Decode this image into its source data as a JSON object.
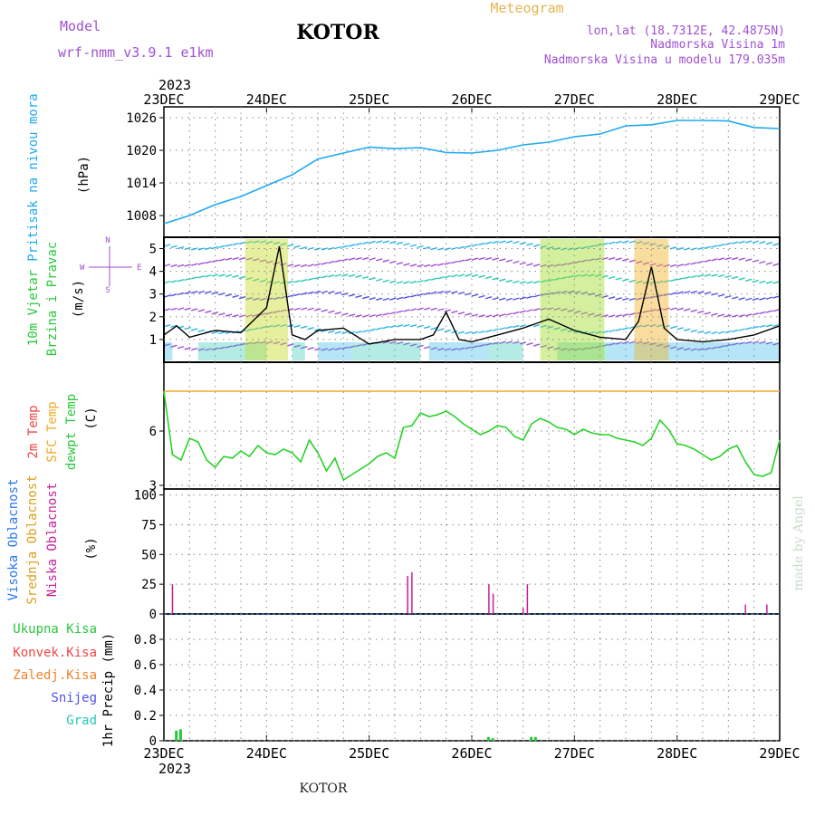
{
  "header": {
    "model_label": "Model",
    "model_name": "wrf-nmm_v3.9.1  e1km",
    "title": "KOTOR",
    "meteogram": "Meteogram",
    "lonlat": "lon,lat (18.7312E, 42.4875N)",
    "elev": "Nadmorska Visina 1m",
    "elev_model": "Nadmorska Visina u modelu 179.035m"
  },
  "footer": {
    "station": "KOTOR",
    "credit": "made by Angel"
  },
  "colors": {
    "pressure": "#1eaaf0",
    "temp2m": "#f04646",
    "sfc": "#f0aa28",
    "dewpt": "#28d228",
    "high_cloud": "#2878f0",
    "mid_cloud": "#dca01e",
    "low_cloud": "#c81e96",
    "precip": "#28c83c",
    "wind_label": "#28c83c",
    "compass": "#a050d2",
    "header_purple": "#a050d2",
    "header_gold": "#e6b450",
    "grid": "#888888"
  },
  "time_axis": {
    "year": "2023",
    "labels": [
      "23DEC",
      "24DEC",
      "25DEC",
      "26DEC",
      "27DEC",
      "28DEC",
      "29DEC"
    ]
  },
  "panels": {
    "pressure": {
      "label": "Pritisak na nivou mora",
      "unit": "(hPa)"
    },
    "wind": {
      "label1": "10m Vjetar",
      "label2": "Brzina i Pravac",
      "unit": "(m/s)",
      "compass": [
        "N",
        "W",
        "E",
        "S"
      ]
    },
    "temp": {
      "label1": "2m Temp",
      "label2": "SFC Temp",
      "label3": "dewpt Temp",
      "unit": "(C)"
    },
    "cloud": {
      "label1": "Visoka Oblacnost",
      "label2": "Srednja Oblacnost",
      "label3": "Niska Oblacnost",
      "unit": "(%)"
    },
    "precip": {
      "labels": [
        "Ukupna Kisa",
        "Konvek.Kisa",
        "Zaledj.Kisa",
        "Snijeg",
        "Grad"
      ],
      "unit": "1hr Precip (mm)"
    }
  },
  "chart_data": [
    {
      "type": "line",
      "title": "Pritisak na nivou mora",
      "ylabel": "(hPa)",
      "ylim": [
        1004,
        1028
      ],
      "yticks": [
        1008,
        1014,
        1020,
        1026
      ],
      "grid": true,
      "x": [
        0,
        6,
        12,
        18,
        24,
        30,
        36,
        42,
        48,
        54,
        60,
        66,
        72,
        78,
        84,
        90,
        96,
        102,
        108,
        114,
        120,
        126,
        132,
        138,
        144
      ],
      "series": [
        {
          "name": "",
          "values": [
            1006.5,
            1008,
            1010,
            1011.5,
            1013.5,
            1015.5,
            1018.4,
            1019.5,
            1020.6,
            1020.3,
            1020.5,
            1019.6,
            1019.5,
            1020,
            1021,
            1021.5,
            1022.5,
            1023,
            1024.5,
            1024.7,
            1025.5,
            1025.5,
            1025.4,
            1024.2,
            1024
          ]
        }
      ]
    },
    {
      "type": "line",
      "title": "10m Vjetar Brzina i Pravac",
      "ylabel": "(m/s)",
      "ylim": [
        0,
        5.5
      ],
      "yticks": [
        1,
        2,
        3,
        4,
        5
      ],
      "grid": true,
      "x": [
        0,
        3,
        6,
        12,
        18,
        24,
        27,
        30,
        33,
        36,
        42,
        48,
        54,
        60,
        63,
        66,
        69,
        72,
        78,
        84,
        90,
        96,
        102,
        108,
        111,
        114,
        117,
        120,
        126,
        132,
        138,
        144
      ],
      "series": [
        {
          "name": "",
          "values": [
            1.2,
            1.6,
            1.1,
            1.4,
            1.3,
            2.4,
            5.1,
            1.2,
            1,
            1.4,
            1.5,
            0.8,
            1,
            1,
            1.2,
            2.2,
            1,
            0.9,
            1.2,
            1.5,
            1.9,
            1.4,
            1.1,
            1,
            1.8,
            4.2,
            1.5,
            1,
            0.9,
            1,
            1.2,
            1.6
          ]
        }
      ]
    },
    {
      "type": "line",
      "title": "Temp",
      "ylabel": "(C)",
      "ylim": [
        2.8,
        9.8
      ],
      "yticks": [
        3,
        6
      ],
      "grid": true,
      "x": [
        0,
        2,
        4,
        6,
        8,
        10,
        12,
        14,
        16,
        18,
        20,
        22,
        24,
        26,
        28,
        30,
        32,
        34,
        36,
        38,
        40,
        42,
        44,
        46,
        48,
        50,
        52,
        54,
        56,
        58,
        60,
        62,
        64,
        66,
        68,
        70,
        72,
        74,
        76,
        78,
        80,
        82,
        84,
        86,
        88,
        90,
        92,
        94,
        96,
        98,
        100,
        102,
        104,
        106,
        108,
        110,
        112,
        114,
        116,
        118,
        120,
        122,
        124,
        126,
        128,
        130,
        132,
        134,
        136,
        138,
        140,
        142,
        144
      ],
      "series": [
        {
          "name": "",
          "values": [
            8.2,
            4.7,
            4.4,
            5.6,
            5.4,
            4.4,
            4,
            4.6,
            4.5,
            4.9,
            4.6,
            5.2,
            4.8,
            4.7,
            5,
            4.8,
            4.3,
            5.5,
            4.8,
            3.8,
            4.5,
            3.3,
            3.6,
            3.9,
            4.2,
            4.6,
            4.8,
            4.5,
            6.2,
            6.3,
            7,
            6.8,
            6.9,
            7.1,
            6.8,
            6.4,
            6.1,
            5.8,
            6,
            6.3,
            6.2,
            5.7,
            5.5,
            6.4,
            6.7,
            6.5,
            6.2,
            6.1,
            5.8,
            6.1,
            5.9,
            5.8,
            5.8,
            5.6,
            5.5,
            5.4,
            5.2,
            5.6,
            6.6,
            6.1,
            5.3,
            5.2,
            5,
            4.7,
            4.4,
            4.6,
            5,
            5.2,
            4.3,
            3.6,
            3.5,
            3.7,
            5.5
          ]
        },
        {
          "name": "",
          "values": [
            8.2,
            8.2,
            8.2,
            8.2,
            8.2,
            8.2,
            8.2,
            8.2,
            8.2,
            8.2,
            8.2,
            8.2,
            8.2,
            8.2,
            8.2,
            8.2,
            8.2,
            8.2,
            8.2,
            8.2,
            8.2,
            8.2,
            8.2,
            8.2,
            8.2,
            8.2,
            8.2,
            8.2,
            8.2,
            8.2,
            8.2,
            8.2,
            8.2,
            8.2,
            8.2,
            8.2,
            8.2,
            8.2,
            8.2,
            8.2,
            8.2,
            8.2,
            8.2,
            8.2,
            8.2,
            8.2,
            8.2,
            8.2,
            8.2,
            8.2,
            8.2,
            8.2,
            8.2,
            8.2,
            8.2,
            8.2,
            8.2,
            8.2,
            8.2,
            8.2,
            8.2,
            8.2,
            8.2,
            8.2,
            8.2,
            8.2,
            8.2,
            8.2,
            8.2,
            8.2,
            8.2,
            8.2,
            8.2
          ]
        }
      ]
    },
    {
      "type": "bar",
      "title": "Oblacnost",
      "ylabel": "(%)",
      "ylim": [
        0,
        105
      ],
      "yticks": [
        0,
        25,
        50,
        75,
        100
      ],
      "grid": true,
      "x": [
        2,
        57,
        58,
        76,
        77,
        84,
        85,
        136,
        141
      ],
      "series": [
        {
          "name": "",
          "values": [
            25,
            32,
            35,
            25,
            17,
            5,
            25,
            8,
            8
          ]
        }
      ]
    },
    {
      "type": "bar",
      "title": "1hr Precip",
      "ylabel": "1hr Precip (mm)",
      "ylim": [
        0,
        1.0
      ],
      "yticks": [
        0,
        0.2,
        0.4,
        0.6,
        0.8
      ],
      "grid": true,
      "x": [
        3,
        4,
        76,
        77,
        86,
        87
      ],
      "series": [
        {
          "name": "",
          "values": [
            0.08,
            0.09,
            0.03,
            0.02,
            0.03,
            0.03
          ]
        }
      ]
    }
  ]
}
